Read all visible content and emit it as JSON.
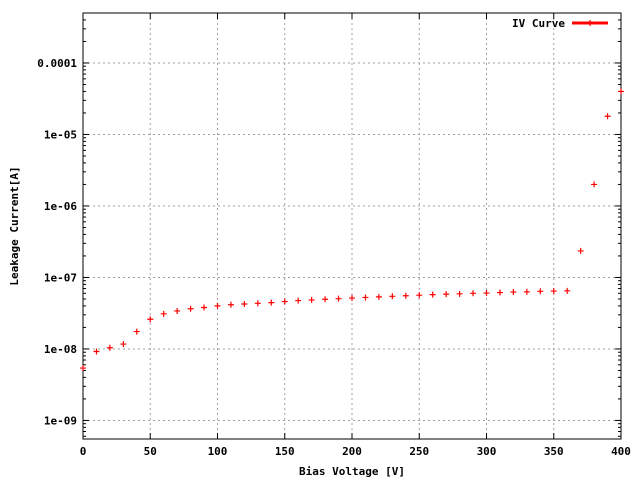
{
  "chart_data": {
    "type": "scatter",
    "title": "",
    "xlabel": "Bias Voltage [V]",
    "ylabel": "Leakage Current[A]",
    "xlim": [
      0,
      400
    ],
    "ylim": [
      5.5e-10,
      0.0005
    ],
    "yscale": "log",
    "grid": true,
    "legend_position": "top-right",
    "x_ticks": [
      0,
      50,
      100,
      150,
      200,
      250,
      300,
      350,
      400
    ],
    "x_tick_labels": [
      "0",
      "50",
      "100",
      "150",
      "200",
      "250",
      "300",
      "350",
      "400"
    ],
    "y_ticks": [
      1e-09,
      1e-08,
      1e-07,
      1e-06,
      1e-05,
      0.0001
    ],
    "y_tick_labels": [
      "1e-09",
      "1e-08",
      "1e-07",
      "1e-06",
      "1e-05",
      "0.0001"
    ],
    "series": [
      {
        "name": "IV Curve",
        "color": "#ff0000",
        "marker": "plus",
        "x": [
          0,
          10,
          20,
          30,
          40,
          50,
          60,
          70,
          80,
          90,
          100,
          110,
          120,
          130,
          140,
          150,
          160,
          170,
          180,
          190,
          200,
          210,
          220,
          230,
          240,
          250,
          260,
          270,
          280,
          290,
          300,
          310,
          320,
          330,
          340,
          350,
          360,
          370,
          380,
          390,
          400
        ],
        "y": [
          5.4e-09,
          9.2e-09,
          1.04e-08,
          1.17e-08,
          1.75e-08,
          2.6e-08,
          3.1e-08,
          3.4e-08,
          3.65e-08,
          3.8e-08,
          4e-08,
          4.15e-08,
          4.25e-08,
          4.35e-08,
          4.45e-08,
          4.6e-08,
          4.75e-08,
          4.85e-08,
          4.95e-08,
          5.05e-08,
          5.15e-08,
          5.25e-08,
          5.35e-08,
          5.45e-08,
          5.55e-08,
          5.65e-08,
          5.75e-08,
          5.85e-08,
          5.9e-08,
          6e-08,
          6.05e-08,
          6.15e-08,
          6.25e-08,
          6.3e-08,
          6.4e-08,
          6.45e-08,
          6.5e-08,
          2.35e-07,
          2e-06,
          1.8e-05,
          4e-05
        ]
      }
    ]
  }
}
